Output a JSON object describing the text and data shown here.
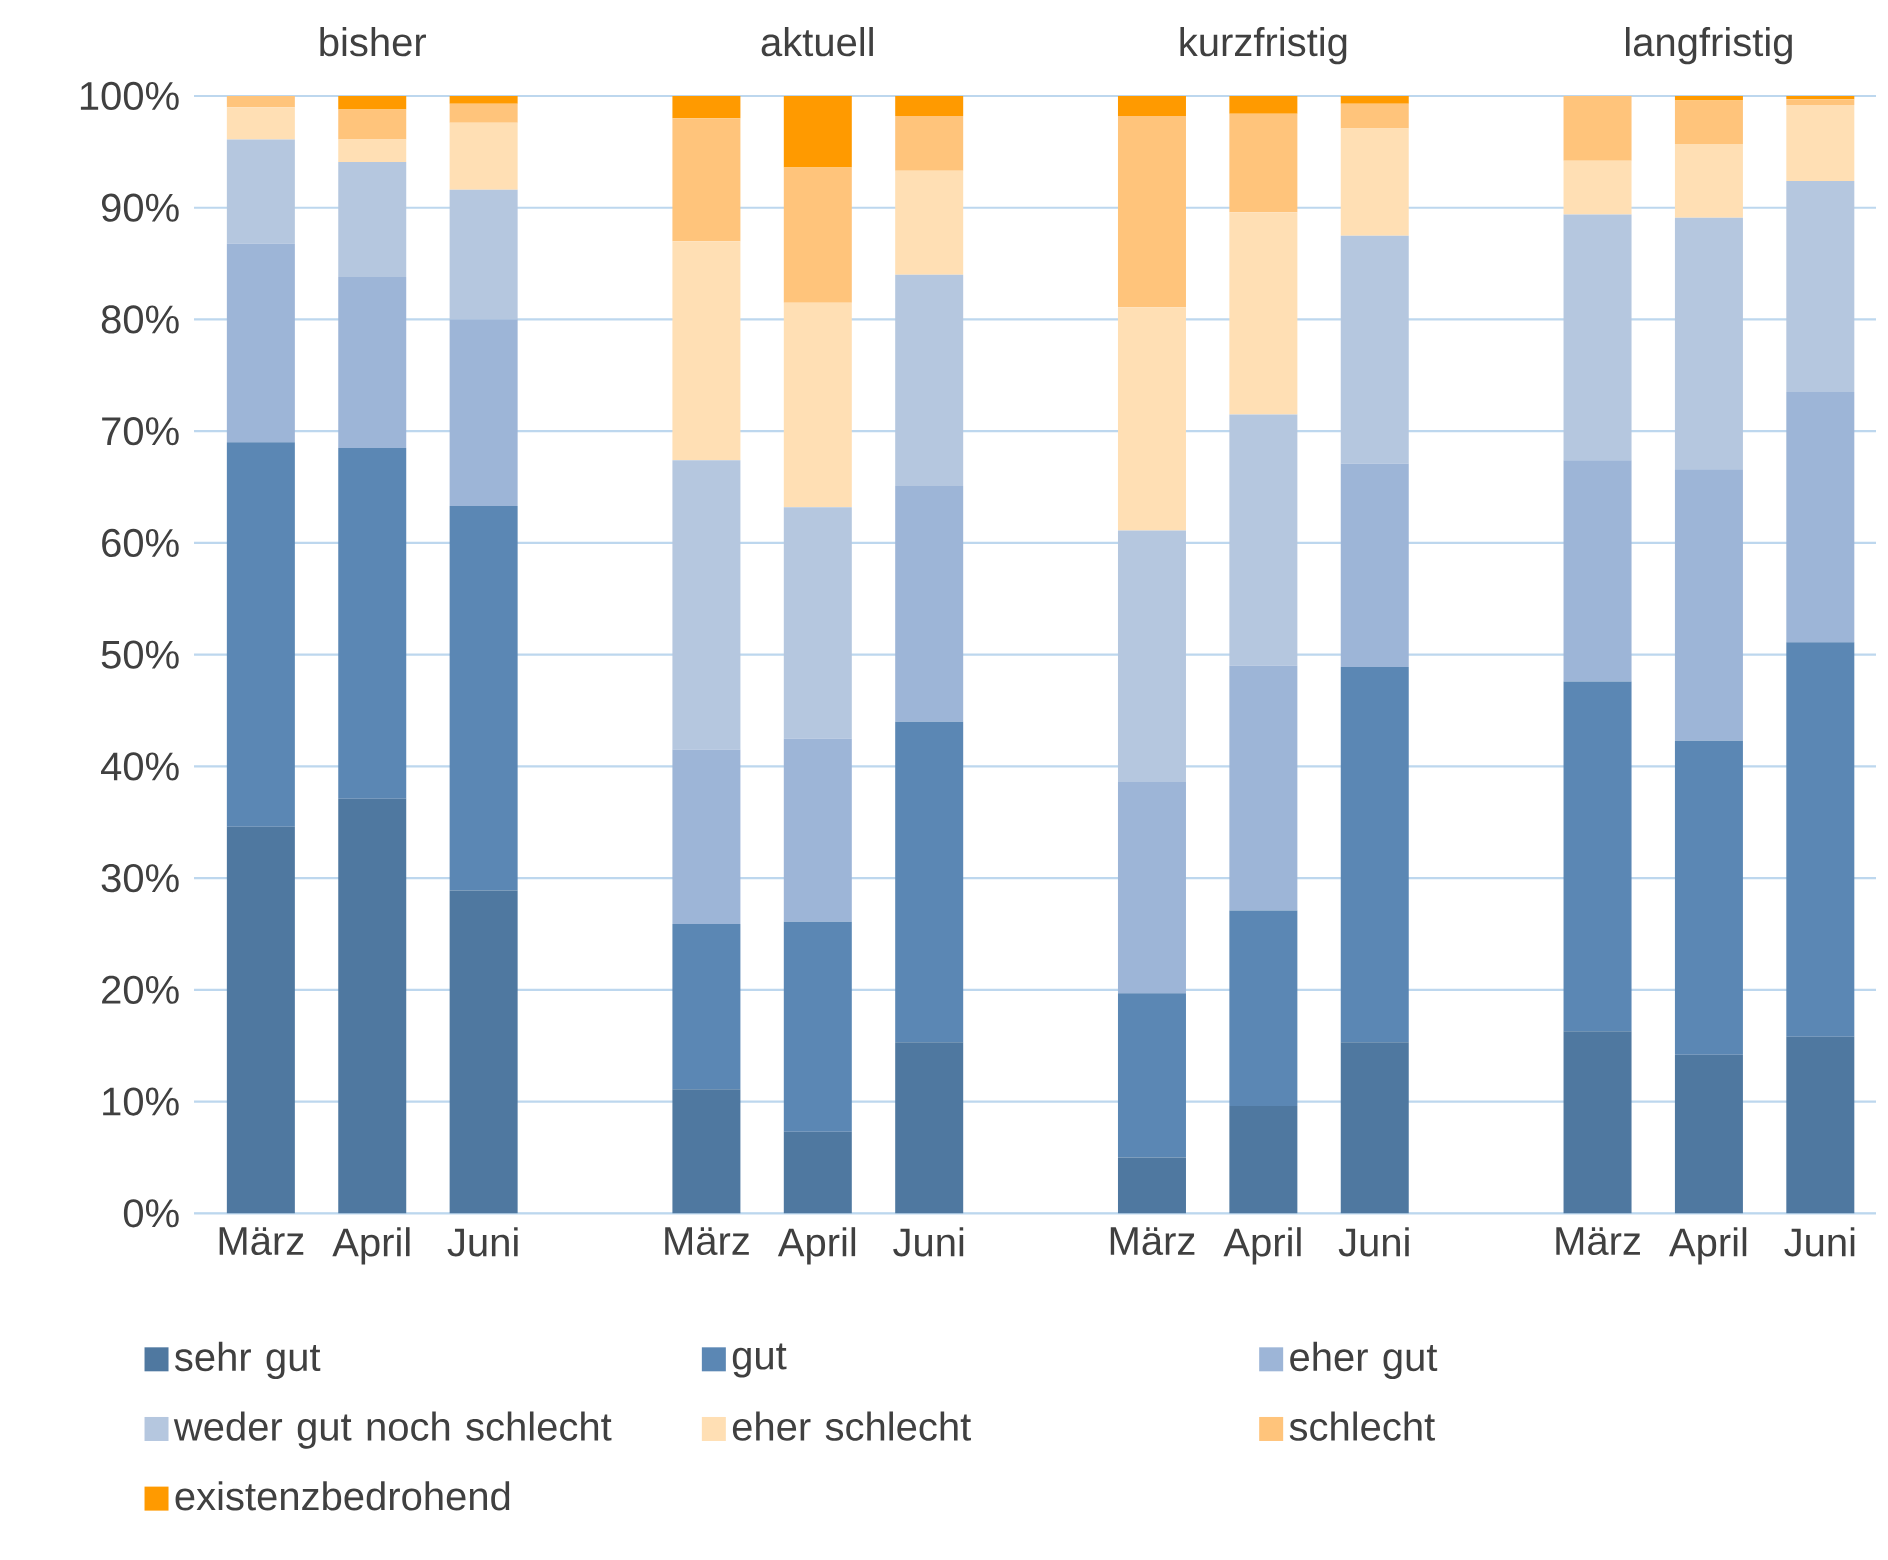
{
  "chart_data": {
    "type": "bar",
    "stacked": true,
    "categories": [
      "März",
      "April",
      "Juni",
      null,
      "März",
      "April",
      "Juni",
      null,
      "März",
      "April",
      "Juni",
      null,
      "März",
      "April",
      "Juni"
    ],
    "annotations": [
      "bisher",
      "aktuell",
      "kurzfristig",
      "langfristig"
    ],
    "series": [
      {
        "name": "sehr gut",
        "color": "#4f78a0",
        "values": [
          34.6,
          37.1,
          28.9,
          null,
          11.1,
          7.3,
          15.3,
          null,
          5.0,
          9.6,
          15.3,
          null,
          16.3,
          14.2,
          15.8
        ]
      },
      {
        "name": "gut",
        "color": "#5b87b4",
        "values": [
          34.4,
          31.4,
          34.4,
          null,
          14.8,
          18.8,
          28.7,
          null,
          14.7,
          17.5,
          33.6,
          null,
          31.3,
          28.1,
          35.3
        ]
      },
      {
        "name": "eher gut",
        "color": "#9db5d7",
        "values": [
          17.8,
          15.3,
          16.7,
          null,
          15.6,
          16.4,
          21.1,
          null,
          18.9,
          21.9,
          18.2,
          null,
          19.8,
          24.3,
          22.4
        ]
      },
      {
        "name": "weder gut noch schlecht",
        "color": "#b5c7df",
        "values": [
          9.3,
          10.3,
          11.6,
          null,
          25.9,
          20.7,
          18.9,
          null,
          22.5,
          22.5,
          20.4,
          null,
          22.0,
          22.5,
          18.9
        ]
      },
      {
        "name": "eher schlecht",
        "color": "#ffdfb4",
        "values": [
          2.9,
          2.0,
          6.0,
          null,
          19.6,
          18.3,
          9.3,
          null,
          20.0,
          18.1,
          9.6,
          null,
          4.8,
          6.6,
          6.8
        ]
      },
      {
        "name": "schlecht",
        "color": "#ffc47b",
        "values": [
          1.0,
          2.7,
          1.7,
          null,
          11.0,
          12.1,
          4.9,
          null,
          17.1,
          8.8,
          2.2,
          null,
          5.8,
          3.9,
          0.5
        ]
      },
      {
        "name": "existenzbedrohend",
        "color": "#ff9a00",
        "values": [
          0,
          1.2,
          0.7,
          null,
          2.0,
          6.4,
          1.8,
          null,
          1.8,
          1.6,
          0.7,
          null,
          0,
          0.4,
          0.3
        ]
      }
    ],
    "ylim": [
      0,
      100
    ],
    "yticks": [
      {
        "value": 0,
        "label": "0%"
      },
      {
        "value": 10,
        "label": "10%"
      },
      {
        "value": 20,
        "label": "20%"
      },
      {
        "value": 30,
        "label": "30%"
      },
      {
        "value": 40,
        "label": "40%"
      },
      {
        "value": 50,
        "label": "50%"
      },
      {
        "value": 60,
        "label": "60%"
      },
      {
        "value": 70,
        "label": "70%"
      },
      {
        "value": 80,
        "label": "80%"
      },
      {
        "value": 90,
        "label": "90%"
      },
      {
        "value": 100,
        "label": "100%"
      }
    ],
    "grid": "y",
    "legend": "bottom"
  }
}
